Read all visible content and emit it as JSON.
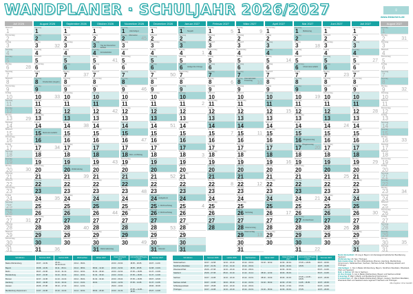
{
  "header": {
    "title": "WANDPLANER · SCHULJAHR 2026/2027",
    "logo_url": "www.4teachers.de"
  },
  "accent": "#17a3a3",
  "weekend_sat": "#d4ecec",
  "weekend_sun": "#a6d6d6",
  "weekdays": [
    "Montag",
    "Dienstag",
    "Mittwoch",
    "Donnerstag",
    "Freitag",
    "Samstag",
    "Sonntag"
  ],
  "months": [
    {
      "label": "Juli 2026",
      "y": 2026,
      "m": 7,
      "days": 31,
      "grey": true
    },
    {
      "label": "August 2026",
      "y": 2026,
      "m": 8,
      "days": 31
    },
    {
      "label": "September 2026",
      "y": 2026,
      "m": 9,
      "days": 30
    },
    {
      "label": "Oktober 2026",
      "y": 2026,
      "m": 10,
      "days": 31
    },
    {
      "label": "November 2026",
      "y": 2026,
      "m": 11,
      "days": 30
    },
    {
      "label": "Dezember 2026",
      "y": 2026,
      "m": 12,
      "days": 31
    },
    {
      "label": "Januar 2027",
      "y": 2027,
      "m": 1,
      "days": 31
    },
    {
      "label": "Februar 2027",
      "y": 2027,
      "m": 2,
      "days": 28
    },
    {
      "label": "März 2027",
      "y": 2027,
      "m": 3,
      "days": 31
    },
    {
      "label": "April 2027",
      "y": 2027,
      "m": 4,
      "days": 30
    },
    {
      "label": "Mai 2027",
      "y": 2027,
      "m": 5,
      "days": 31
    },
    {
      "label": "Juni 2027",
      "y": 2027,
      "m": 6,
      "days": 30
    },
    {
      "label": "Juli 2027",
      "y": 2027,
      "m": 7,
      "days": 31
    },
    {
      "label": "August 2027",
      "y": 2027,
      "m": 8,
      "days": 31,
      "grey": true
    }
  ],
  "holidays": [
    {
      "y": 2026,
      "m": 8,
      "d": 8,
      "label": "Friedensfest (Augsb.)"
    },
    {
      "y": 2026,
      "m": 8,
      "d": 15,
      "label": "Mariä Himmelfahrt"
    },
    {
      "y": 2026,
      "m": 9,
      "d": 20,
      "label": "Weltkindertag"
    },
    {
      "y": 2026,
      "m": 10,
      "d": 3,
      "label": "Tag der Deutschen Einheit"
    },
    {
      "y": 2026,
      "m": 10,
      "d": 4,
      "label": "Erntedankfest"
    },
    {
      "y": 2026,
      "m": 10,
      "d": 31,
      "label": "Reformationstag"
    },
    {
      "y": 2026,
      "m": 11,
      "d": 1,
      "label": "Allerheiligen"
    },
    {
      "y": 2026,
      "m": 11,
      "d": 2,
      "label": "Allerseelen"
    },
    {
      "y": 2026,
      "m": 11,
      "d": 18,
      "label": "Buß- und Bettag"
    },
    {
      "y": 2026,
      "m": 12,
      "d": 24,
      "label": "Heiligabend"
    },
    {
      "y": 2026,
      "m": 12,
      "d": 25,
      "label": "1. Weihnachtstag"
    },
    {
      "y": 2026,
      "m": 12,
      "d": 26,
      "label": "2. Weihnachtstag"
    },
    {
      "y": 2026,
      "m": 12,
      "d": 31,
      "label": "Silvester"
    },
    {
      "y": 2027,
      "m": 1,
      "d": 1,
      "label": "Neujahr"
    },
    {
      "y": 2027,
      "m": 1,
      "d": 6,
      "label": "Heilige Drei Könige"
    },
    {
      "y": 2027,
      "m": 3,
      "d": 8,
      "label": "Internationaler Frauentag"
    },
    {
      "y": 2027,
      "m": 3,
      "d": 26,
      "label": "Karfreitag"
    },
    {
      "y": 2027,
      "m": 3,
      "d": 28,
      "label": "Ostersonntag"
    },
    {
      "y": 2027,
      "m": 3,
      "d": 29,
      "label": "Ostermontag"
    },
    {
      "y": 2027,
      "m": 5,
      "d": 1,
      "label": "Maifeiertag"
    },
    {
      "y": 2027,
      "m": 5,
      "d": 6,
      "label": "Christi Himmelfahrt"
    },
    {
      "y": 2027,
      "m": 5,
      "d": 16,
      "label": "Pfingstsonntag"
    },
    {
      "y": 2027,
      "m": 5,
      "d": 17,
      "label": "Pfingstmontag"
    },
    {
      "y": 2027,
      "m": 5,
      "d": 27,
      "label": "Fronleichnam"
    }
  ],
  "tables": {
    "headers_left": [
      "Schulferien",
      "Sommer 2026",
      "Herbst 2026",
      "Weihnachten",
      "Winter 2027",
      "Ostern/Frühjahr 2027",
      "Himmelfahrt/Pfingsten 2027",
      "Sommer 2027"
    ],
    "rows_left": [
      [
        "Baden-Württemberg",
        "30.07. - 12.09.",
        "26.10. - 30.10./31.10.",
        "23.12. - 09.01.",
        "-",
        "22.03. - 03.04.",
        "18.05. - 29.05.",
        "29.07. - 11.09."
      ],
      [
        "Bayern",
        "03.08. - 14.09.",
        "02.11. - 06.11.",
        "24.12. - 08.01.",
        "08.02. - 12.02.",
        "22.03. - 02.04.",
        "18.05. - 28.05.",
        "02.08. - 13.09."
      ],
      [
        "Berlin",
        "09.07. - 22.08.",
        "19.10. - 31.10.",
        "23.12. - 02.01.",
        "01.02. - 06.02.",
        "22.03. - 02.04.",
        "07.05. + 18.05.",
        "01.07. - 13.08."
      ],
      [
        "Brandenburg",
        "09.07. - 22.08.",
        "19.10. - 30.10.",
        "23.12. - 02.01.",
        "01.02. - 06.02.",
        "24.03. - 03.04.",
        "07.05. + 18.05.",
        "01.07. - 14.08."
      ],
      [
        "Bremen",
        "02.07. - 12.08.",
        "12.10. - 24.10.",
        "23.12. - 09.01.",
        "01.02. - 02.02.",
        "22.03. - 06.04.",
        "07.05. + 18.05.",
        "08.07. - 18.08."
      ],
      [
        "Hamburg",
        "09.07. - 19.08.",
        "19.10. - 30.10.",
        "21.12. - 01.01.",
        "29.01.",
        "01.03. - 12.03.",
        "07.05. - 14.05.",
        "01.07. - 11.08."
      ],
      [
        "Hessen",
        "29.06. - 07.08.",
        "05.10. - 17.10.",
        "23.12. - 12.01.",
        "-",
        "29.03. - 10.04.",
        "-",
        "28.06. - 06.08."
      ],
      [
        "Mecklenburg-Vorpommern",
        "13.07. - 22.08.",
        "15.10. - 24.10.",
        "21.12. - 02.01.",
        "08.02. - 20.02.",
        "22.03. - 31.03.",
        "07.05. + 14.05. - 18.05.",
        "05.07. - 14.08."
      ]
    ],
    "headers_right": [
      "Schulferien",
      "Sommer 2026",
      "Herbst 2026",
      "Weihnachten",
      "Winter 2027",
      "Ostern/Frühjahr 2027",
      "Himmelfahrt/Pfingsten 2027",
      "Sommer 2027"
    ],
    "rows_right": [
      [
        "Niedersachsen",
        "02.07. - 12.08.",
        "12.10. - 24.10.",
        "23.12. - 09.01.",
        "01.02. - 02.02.",
        "22.03. - 06.04.",
        "07.05. + 18.05.",
        "08.07. - 18.08."
      ],
      [
        "Nordrhein-Westfalen",
        "20.07. - 01.09.",
        "17.10. - 31.10.",
        "23.12. - 06.01.",
        "-",
        "22.03. - 03.04.",
        "18.05.",
        "19.07. - 31.08."
      ],
      [
        "Rheinland-Pfalz",
        "29.06. - 07.08.",
        "12.10. - 23.10.",
        "23.12. - 08.01.",
        "-",
        "22.03. - 02.04.",
        "-",
        "05.07. - 13.08."
      ],
      [
        "Saarland",
        "29.06. - 07.08.",
        "05.10. - 16.10.",
        "21.12. - 31.12.",
        "08.02. - 12.02.",
        "29.03. - 09.04.",
        "-",
        "05.07. - 13.08."
      ],
      [
        "Sachsen",
        "04.07. - 14.08.",
        "12.10. - 24.10.",
        "23.12. - 02.01.",
        "08.02. - 19.02.",
        "26.03. - 02.04.",
        "07.05. + 14.05. - 18.05.",
        "10.07. - 20.08."
      ],
      [
        "Sachsen-Anhalt",
        "04.07. - 14.08.",
        "19.10. - 30.10.",
        "21.12. - 02.01.",
        "01.02. - 06.02.",
        "22.03. - 27.03.",
        "11.05. - 15.05.",
        "10.07. - 20.08."
      ],
      [
        "Schleswig-Holstein",
        "04.07. - 15.08.",
        "12.10. - 24.10.",
        "21.12. - 06.01.",
        "-",
        "01.04. - 17.04.",
        "07.05.",
        "03.07. - 14.08."
      ],
      [
        "Thüringen",
        "04.07. - 14.08.",
        "12.10. - 24.10.",
        "23.12. - 02.01.",
        "01.02. - 06.02.",
        "22.03. - 03.04.",
        "07.05.",
        "10.07. - 20.08."
      ]
    ]
  },
  "notes": [
    {
      "bold": "Mariä Himmelfahrt:",
      "text": "15. Aug in Bayern mit überwiegend katholischer Bevölkerung, Saarland"
    },
    {
      "bold": "Weltkindertag:",
      "text": "20. Sep. Thüringen"
    },
    {
      "bold": "Reformationstag:",
      "text": "31. Okt in Brandenburg, Bremen, Hamburg, Mecklenburg-Vorpommern, Niedersachsen, Sachsen, Sachsen-Anhalt, Schleswig-Holstein und Thüringen"
    },
    {
      "bold": "Allerheiligen:",
      "text": "1. Nov in Baden-Württemberg, Bayern, Nordrhein-Westfalen, Rheinland-Pfalz und Saarland"
    },
    {
      "bold": "Buß- u. Bettag:",
      "text": "18. Nov in Sachsen"
    },
    {
      "bold": "Hl. Drei Könige:",
      "text": "6. Jan in Baden-Württemberg, Bayern und Sachsen-Anhalt"
    },
    {
      "bold": "Frauentag:",
      "text": "8. März in Berlin und Mecklenburg-Vorpommern"
    },
    {
      "bold": "Fronleichnam:",
      "text": "27. Mai in Baden-Württemberg, Bayern, Hessen, Nordrhein-Westfalen, Rheinland-Pfalz und Saarland sowie regional in Sachsen und Thüringen"
    }
  ],
  "credit": "Alle Angaben ohne Gewähr"
}
